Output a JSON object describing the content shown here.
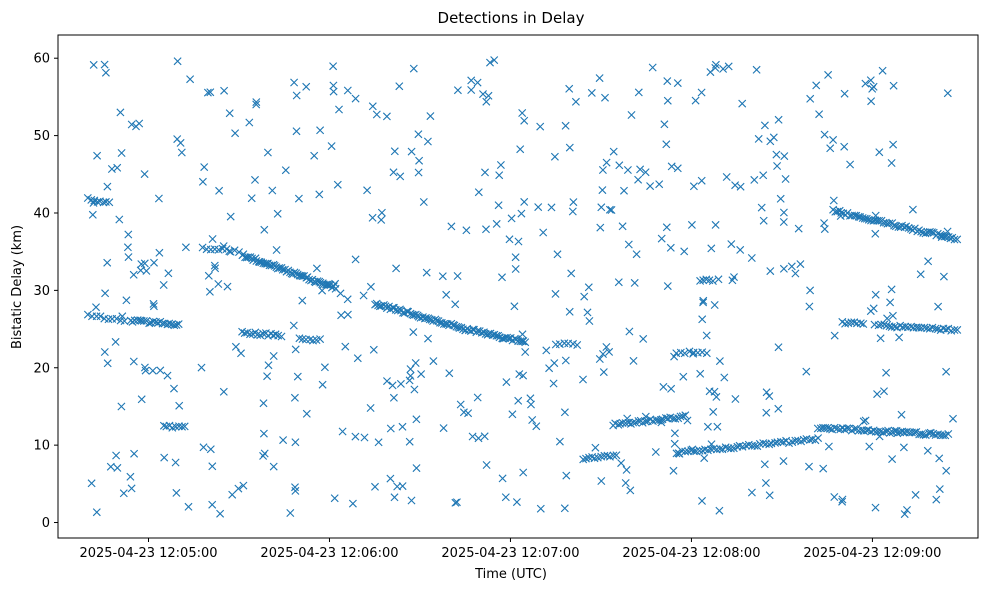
{
  "chart_data": {
    "type": "scatter",
    "title": "Detections in Delay",
    "xlabel": "Time (UTC)",
    "ylabel": "Bistatic Delay (km)",
    "x_unit": "time",
    "xlim": [
      "2025-04-23 12:04:30",
      "2025-04-23 12:09:35"
    ],
    "ylim": [
      -2,
      63
    ],
    "x_ticks": [
      "2025-04-23 12:05:00",
      "2025-04-23 12:06:00",
      "2025-04-23 12:07:00",
      "2025-04-23 12:08:00",
      "2025-04-23 12:09:00"
    ],
    "y_ticks": [
      0,
      10,
      20,
      30,
      40,
      50,
      60
    ],
    "marker": "x",
    "color": "#1f77b4",
    "grid": false,
    "legend": "none",
    "tracks": [
      {
        "start": "2025-04-23 12:04:40",
        "end": "2025-04-23 12:04:47",
        "y_start": 41.8,
        "y_end": 41.3,
        "count": 8
      },
      {
        "start": "2025-04-23 12:04:40",
        "end": "2025-04-23 12:04:52",
        "y_start": 26.8,
        "y_end": 26.0,
        "count": 10
      },
      {
        "start": "2025-04-23 12:04:54",
        "end": "2025-04-23 12:05:10",
        "y_start": 26.1,
        "y_end": 25.6,
        "count": 22
      },
      {
        "start": "2025-04-23 12:05:05",
        "end": "2025-04-23 12:05:12",
        "y_start": 12.4,
        "y_end": 12.4,
        "count": 8
      },
      {
        "start": "2025-04-23 12:05:18",
        "end": "2025-04-23 12:05:30",
        "y_start": 35.5,
        "y_end": 35.0,
        "count": 10
      },
      {
        "start": "2025-04-23 12:05:31",
        "end": "2025-04-23 12:06:02",
        "y_start": 34.6,
        "y_end": 30.3,
        "count": 58
      },
      {
        "start": "2025-04-23 12:05:31",
        "end": "2025-04-23 12:05:44",
        "y_start": 24.6,
        "y_end": 24.1,
        "count": 16
      },
      {
        "start": "2025-04-23 12:05:50",
        "end": "2025-04-23 12:05:57",
        "y_start": 23.8,
        "y_end": 23.6,
        "count": 7
      },
      {
        "start": "2025-04-23 12:06:15",
        "end": "2025-04-23 12:06:45",
        "y_start": 28.3,
        "y_end": 25.0,
        "count": 52
      },
      {
        "start": "2025-04-23 12:06:45",
        "end": "2025-04-23 12:07:05",
        "y_start": 25.0,
        "y_end": 23.3,
        "count": 34
      },
      {
        "start": "2025-04-23 12:07:15",
        "end": "2025-04-23 12:07:22",
        "y_start": 23.1,
        "y_end": 22.9,
        "count": 6
      },
      {
        "start": "2025-04-23 12:07:24",
        "end": "2025-04-23 12:07:35",
        "y_start": 8.2,
        "y_end": 8.6,
        "count": 12
      },
      {
        "start": "2025-04-23 12:07:34",
        "end": "2025-04-23 12:07:58",
        "y_start": 12.6,
        "y_end": 13.7,
        "count": 30
      },
      {
        "start": "2025-04-23 12:07:55",
        "end": "2025-04-23 12:08:05",
        "y_start": 22.0,
        "y_end": 22.0,
        "count": 8
      },
      {
        "start": "2025-04-23 12:07:55",
        "end": "2025-04-23 12:08:42",
        "y_start": 9.0,
        "y_end": 10.8,
        "count": 50
      },
      {
        "start": "2025-04-23 12:08:03",
        "end": "2025-04-23 12:08:07",
        "y_start": 31.3,
        "y_end": 31.3,
        "count": 5
      },
      {
        "start": "2025-04-23 12:08:42",
        "end": "2025-04-23 12:09:25",
        "y_start": 12.3,
        "y_end": 11.3,
        "count": 55
      },
      {
        "start": "2025-04-23 12:08:50",
        "end": "2025-04-23 12:08:57",
        "y_start": 25.9,
        "y_end": 25.6,
        "count": 8
      },
      {
        "start": "2025-04-23 12:09:02",
        "end": "2025-04-23 12:09:28",
        "y_start": 25.5,
        "y_end": 24.9,
        "count": 30
      },
      {
        "start": "2025-04-23 12:08:47",
        "end": "2025-04-23 12:09:28",
        "y_start": 40.3,
        "y_end": 36.6,
        "count": 60
      }
    ],
    "scatter_points": {
      "count": 520,
      "x_range": [
        "2025-04-23 12:04:40",
        "2025-04-23 12:09:28"
      ],
      "y_range": [
        0.8,
        60.0
      ]
    }
  }
}
